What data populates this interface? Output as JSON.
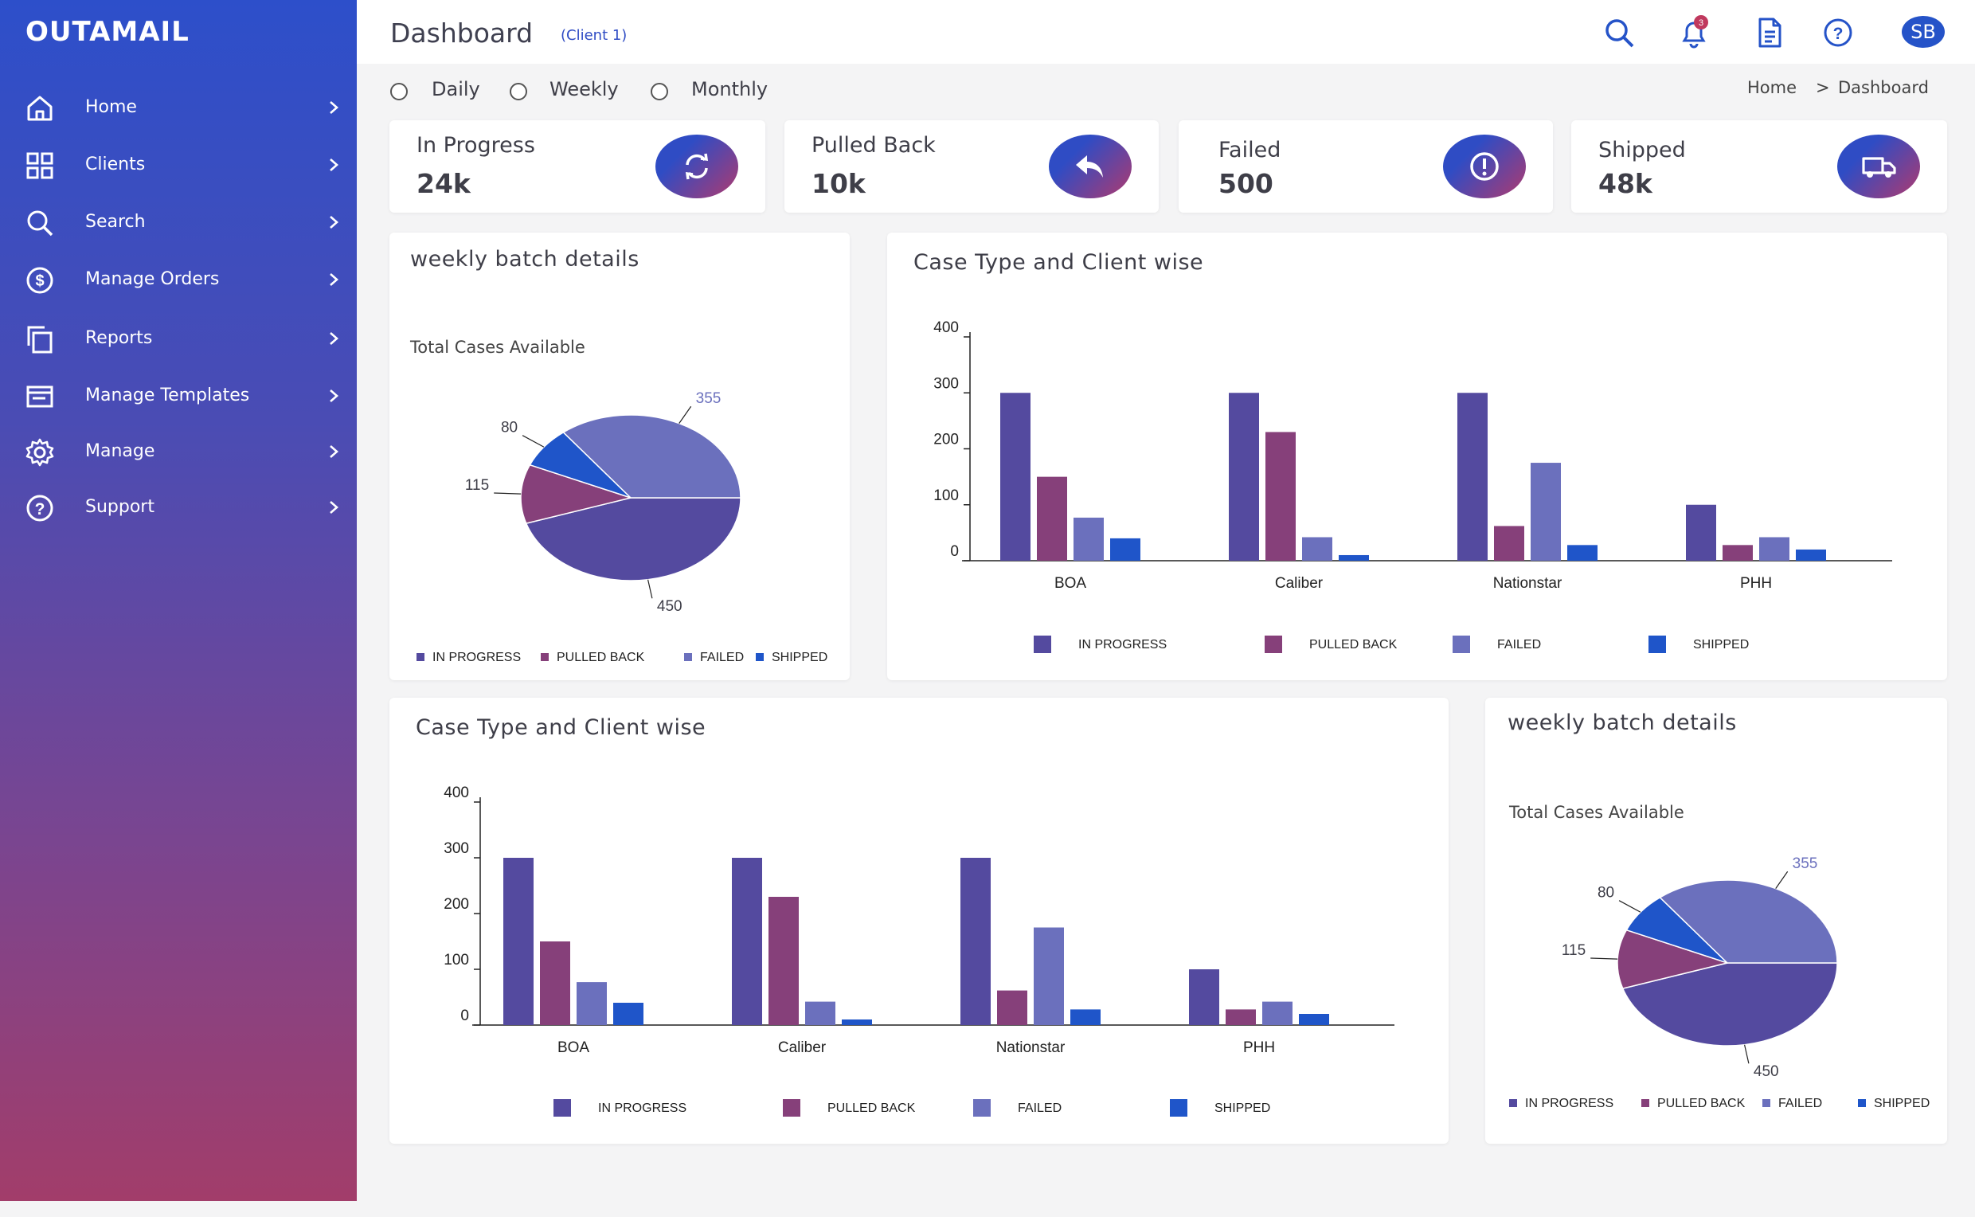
{
  "app": {
    "brand": "OUTAMAIL"
  },
  "sidebar": {
    "items": [
      {
        "label": "Home",
        "icon": "home-icon"
      },
      {
        "label": "Clients",
        "icon": "grid-icon"
      },
      {
        "label": "Search",
        "icon": "search-icon"
      },
      {
        "label": "Manage Orders",
        "icon": "dollar-icon"
      },
      {
        "label": "Reports",
        "icon": "copy-icon"
      },
      {
        "label": "Manage Templates",
        "icon": "template-icon"
      },
      {
        "label": "Manage",
        "icon": "gear-icon"
      },
      {
        "label": "Support",
        "icon": "help-icon"
      }
    ]
  },
  "header": {
    "title": "Dashboard",
    "subtitle": "(Client 1)",
    "notification_count": "3",
    "avatar_initials": "SB"
  },
  "filters": {
    "options": [
      "Daily",
      "Weekly",
      "Monthly"
    ]
  },
  "breadcrumb": {
    "home": "Home",
    "separator": ">",
    "current": "Dashboard"
  },
  "stats": [
    {
      "label": "In Progress",
      "value": "24k",
      "icon": "refresh-icon"
    },
    {
      "label": "Pulled Back",
      "value": "10k",
      "icon": "reply-icon"
    },
    {
      "label": "Failed",
      "value": "500",
      "icon": "alert-icon"
    },
    {
      "label": "Shipped",
      "value": "48k",
      "icon": "truck-icon"
    }
  ],
  "colors": {
    "in_progress": "#544a9f",
    "pulled_back": "#86407a",
    "failed": "#6b70bd",
    "shipped": "#1f55c9"
  },
  "pie_cards": [
    {
      "title": "weekly batch details",
      "subtitle": "Total Cases Available"
    },
    {
      "title": "weekly batch details",
      "subtitle": "Total Cases Available"
    }
  ],
  "bar_cards": [
    {
      "title": "Case Type and Client wise"
    },
    {
      "title": "Case Type and Client wise"
    }
  ],
  "chart_data": [
    {
      "type": "pie",
      "title": "weekly batch details",
      "subtitle": "Total Cases Available",
      "slices": [
        {
          "label": "IN PROGRESS",
          "value": 450
        },
        {
          "label": "PULLED BACK",
          "value": 115
        },
        {
          "label": "FAILED",
          "value": 355
        },
        {
          "label": "SHIPPED",
          "value": 80
        }
      ],
      "slice_labels": [
        "450",
        "115",
        "355",
        "80"
      ],
      "legend": [
        "IN PROGRESS",
        "PULLED BACK",
        "FAILED",
        "SHIPPED"
      ],
      "legend_position": "bottom"
    },
    {
      "type": "bar",
      "title": "Case Type and Client wise",
      "categories": [
        "BOA",
        "Caliber",
        "Nationstar",
        "PHH"
      ],
      "series": [
        {
          "name": "IN PROGRESS",
          "values": [
            300,
            300,
            300,
            100
          ]
        },
        {
          "name": "PULLED BACK",
          "values": [
            150,
            230,
            62,
            28
          ]
        },
        {
          "name": "FAILED",
          "values": [
            77,
            42,
            175,
            42
          ]
        },
        {
          "name": "SHIPPED",
          "values": [
            40,
            10,
            28,
            20
          ]
        }
      ],
      "yticks": [
        "0",
        "100",
        "200",
        "300",
        "400"
      ],
      "ylim": [
        0,
        400
      ],
      "legend_position": "bottom"
    },
    {
      "type": "bar",
      "title": "Case Type and Client wise",
      "categories": [
        "BOA",
        "Caliber",
        "Nationstar",
        "PHH"
      ],
      "series": [
        {
          "name": "IN PROGRESS",
          "values": [
            300,
            300,
            300,
            100
          ]
        },
        {
          "name": "PULLED BACK",
          "values": [
            150,
            230,
            62,
            28
          ]
        },
        {
          "name": "FAILED",
          "values": [
            77,
            42,
            175,
            42
          ]
        },
        {
          "name": "SHIPPED",
          "values": [
            40,
            10,
            28,
            20
          ]
        }
      ],
      "yticks": [
        "0",
        "100",
        "200",
        "300",
        "400"
      ],
      "ylim": [
        0,
        400
      ],
      "legend_position": "bottom"
    },
    {
      "type": "pie",
      "title": "weekly batch details",
      "subtitle": "Total Cases Available",
      "slices": [
        {
          "label": "IN PROGRESS",
          "value": 450
        },
        {
          "label": "PULLED BACK",
          "value": 115
        },
        {
          "label": "FAILED",
          "value": 355
        },
        {
          "label": "SHIPPED",
          "value": 80
        }
      ],
      "slice_labels": [
        "450",
        "115",
        "355",
        "80"
      ],
      "legend": [
        "IN PROGRESS",
        "PULLED BACK",
        "FAILED",
        "SHIPPED"
      ],
      "legend_position": "bottom"
    }
  ]
}
